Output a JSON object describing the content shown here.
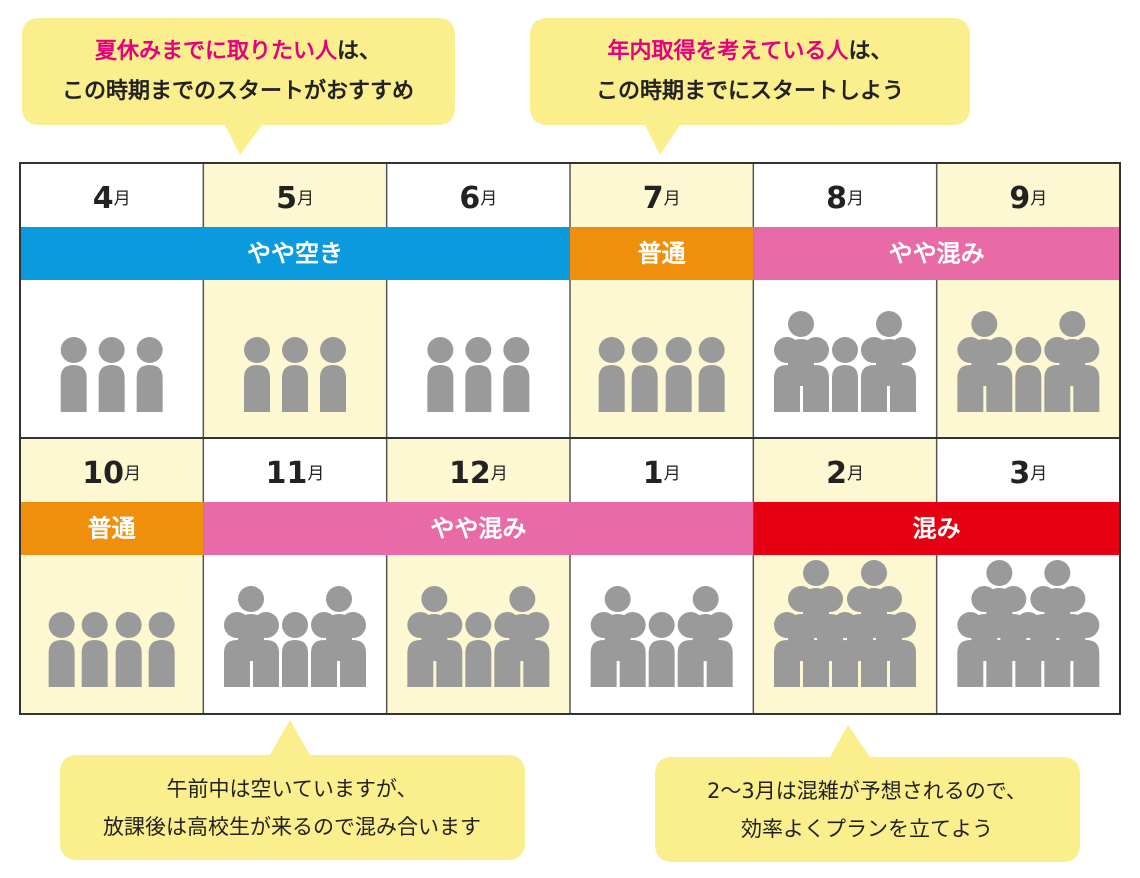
{
  "top_callouts": [
    {
      "highlight": "夏休みまでに取りたい人",
      "line1_rest": "は、",
      "line2": "この時期までのスタートがおすすめ"
    },
    {
      "highlight": "年内取得を考えている人",
      "line1_rest": "は、",
      "line2": "この時期までにスタートしよう"
    }
  ],
  "rows": [
    {
      "segments": [
        {
          "label": "やや空き",
          "color": "#0b9ade",
          "months": [
            {
              "num": 4,
              "unit": "月"
            },
            {
              "num": 5,
              "unit": "月"
            },
            {
              "num": 6,
              "unit": "月"
            }
          ]
        },
        {
          "label": "普通",
          "color": "#ef8f0c",
          "months": [
            {
              "num": 7,
              "unit": "月"
            }
          ]
        },
        {
          "label": "やや混み",
          "color": "#e86aa6",
          "months": [
            {
              "num": 8,
              "unit": "月"
            },
            {
              "num": 9,
              "unit": "月"
            }
          ]
        }
      ]
    },
    {
      "segments": [
        {
          "label": "普通",
          "color": "#ef8f0c",
          "months": [
            {
              "num": 10,
              "unit": "月"
            }
          ]
        },
        {
          "label": "やや混み",
          "color": "#e86aa6",
          "months": [
            {
              "num": 11,
              "unit": "月"
            },
            {
              "num": 12,
              "unit": "月"
            },
            {
              "num": 1,
              "unit": "月"
            }
          ]
        },
        {
          "label": "混み",
          "color": "#e60012",
          "months": [
            {
              "num": 2,
              "unit": "月"
            },
            {
              "num": 3,
              "unit": "月"
            }
          ]
        }
      ]
    }
  ],
  "bottom_callouts": [
    {
      "lines": [
        "午前中は空いていますが、",
        "放課後は高校生が来るので混み合います"
      ]
    },
    {
      "lines": [
        "2～3月は混雑が予想されるので、",
        "効率よくプランを立てよう"
      ]
    }
  ]
}
